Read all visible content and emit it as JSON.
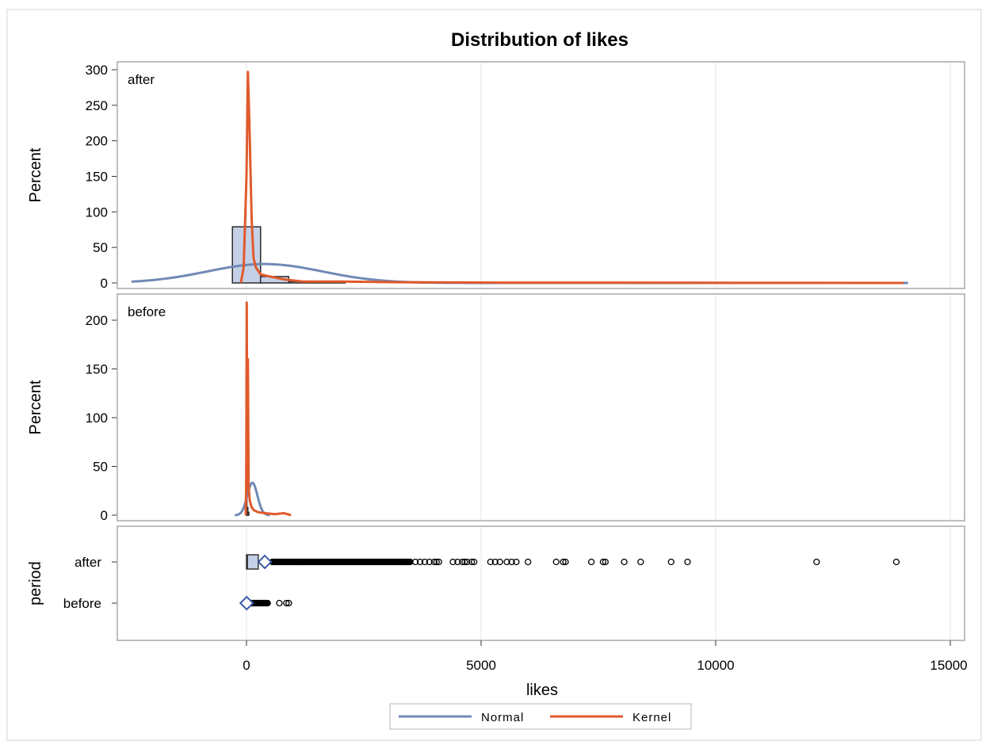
{
  "chart_data": {
    "type": "histogram-panel",
    "title": "Distribution of likes",
    "xlabel": "likes",
    "xlim": [
      -2700,
      15000
    ],
    "xticks": [
      0,
      5000,
      10000,
      15000
    ],
    "xtick_labels": [
      "0",
      "5000",
      "10000",
      "15000"
    ],
    "grid": true,
    "legend_position": "bottom",
    "colors": {
      "normal": "#7089b4",
      "kernel": "#e05a2b",
      "bar_fill": "#c4d0e6",
      "bar_edge": "#2b2b2b",
      "mean_marker": "#3d5ba8",
      "grid": "#e4e4e4",
      "frame": "#a8a8a8"
    },
    "legend": [
      {
        "name": "Normal",
        "color": "#7089b4"
      },
      {
        "name": "Kernel",
        "color": "#e05a2b"
      }
    ],
    "panels": [
      {
        "label": "after",
        "ylabel": "Percent",
        "ylim": [
          0,
          310
        ],
        "yticks": [
          0,
          50,
          100,
          150,
          200,
          250,
          300
        ],
        "bins": [
          {
            "x0": -300,
            "x1": 300,
            "percent": 79
          },
          {
            "x0": 300,
            "x1": 900,
            "percent": 9
          },
          {
            "x0": 900,
            "x1": 1500,
            "percent": 2
          },
          {
            "x0": 1500,
            "x1": 2100,
            "percent": 1
          }
        ],
        "normal_curve": {
          "mean": 390,
          "sd": 1230,
          "scale": 82000,
          "x_range": [
            -2450,
            14100
          ]
        },
        "kernel_curve": [
          [
            -120,
            0
          ],
          [
            -60,
            22
          ],
          [
            0,
            150
          ],
          [
            30,
            297
          ],
          [
            60,
            230
          ],
          [
            110,
            90
          ],
          [
            150,
            35
          ],
          [
            200,
            22
          ],
          [
            300,
            12
          ],
          [
            500,
            9
          ],
          [
            800,
            5
          ],
          [
            1200,
            2
          ],
          [
            2000,
            2
          ],
          [
            3300,
            1
          ],
          [
            5000,
            0.5
          ],
          [
            14000,
            0
          ]
        ]
      },
      {
        "label": "before",
        "ylabel": "Percent",
        "ylim": [
          0,
          225
        ],
        "yticks": [
          0,
          50,
          100,
          150,
          200
        ],
        "bins": [
          {
            "x0": -10,
            "x1": 10,
            "percent": 78
          },
          {
            "x0": 10,
            "x1": 30,
            "percent": 8
          },
          {
            "x0": 30,
            "x1": 50,
            "percent": 3
          }
        ],
        "normal_curve": {
          "mean": 125,
          "sd": 108,
          "scale": 9000,
          "x_range": [
            -250,
            500
          ]
        },
        "kernel_curve": [
          [
            -15,
            0
          ],
          [
            -5,
            40
          ],
          [
            5,
            218
          ],
          [
            18,
            40
          ],
          [
            30,
            160
          ],
          [
            45,
            30
          ],
          [
            70,
            15
          ],
          [
            110,
            8
          ],
          [
            160,
            5
          ],
          [
            250,
            3
          ],
          [
            400,
            2
          ],
          [
            600,
            1
          ],
          [
            800,
            2
          ],
          [
            950,
            0
          ]
        ]
      }
    ],
    "boxplot": {
      "ylabel": "period",
      "categories": [
        "after",
        "before"
      ],
      "boxes": [
        {
          "category": "after",
          "q1": 0,
          "median": 20,
          "q3": 250,
          "mean": 390,
          "outlier_band": [
            550,
            3500
          ],
          "outliers": [
            3600,
            3700,
            3800,
            3900,
            4000,
            4050,
            4100,
            4400,
            4500,
            4600,
            4650,
            4700,
            4800,
            4850,
            5200,
            5300,
            5400,
            5550,
            5650,
            5750,
            6000,
            6600,
            6750,
            6800,
            7350,
            7600,
            7650,
            8050,
            8400,
            9050,
            9400,
            12150,
            13850
          ]
        },
        {
          "category": "before",
          "q1": 0,
          "median": 5,
          "q3": 20,
          "mean": 5,
          "outlier_band": [
            30,
            450
          ],
          "outliers": [
            700,
            850,
            900
          ]
        }
      ]
    }
  }
}
